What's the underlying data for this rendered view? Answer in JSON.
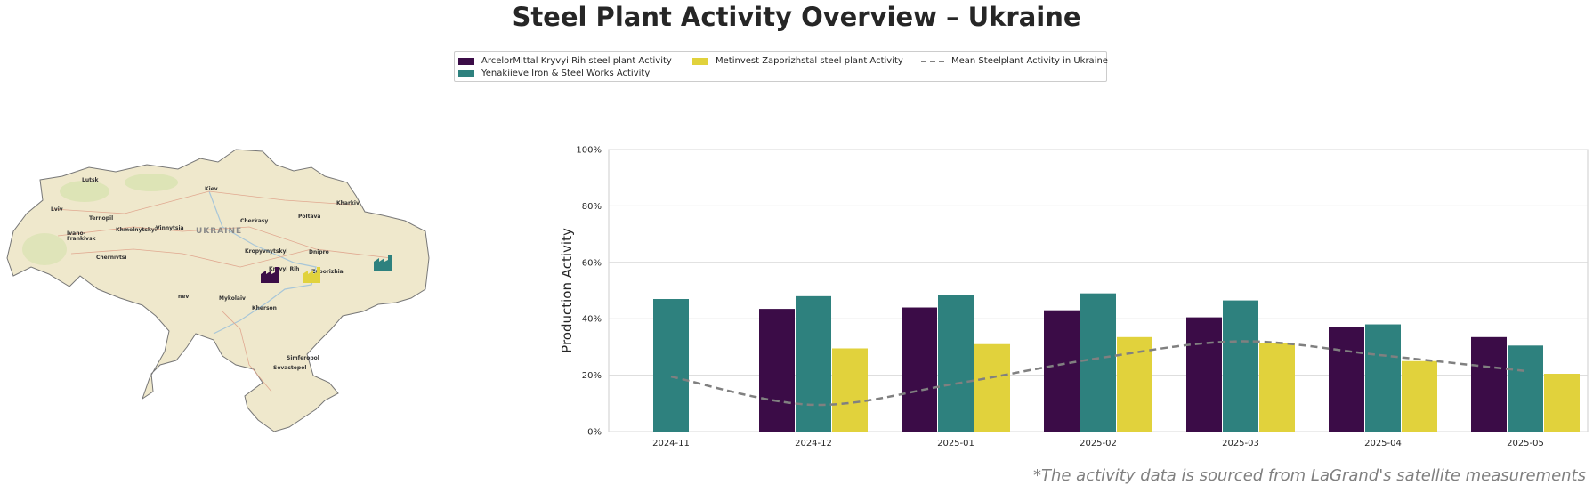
{
  "title": "Steel Plant Activity Overview – Ukraine",
  "footnote": "*The activity data is sourced from LaGrand's satellite measurements",
  "legend": [
    {
      "label": "ArcelorMittal Kryvyi Rih steel plant Activity",
      "color": "#3b0c47"
    },
    {
      "label": "Yenakiieve Iron & Steel Works Activity",
      "color": "#2e817e"
    },
    {
      "label": "Metinvest Zaporizhstal steel plant Activity",
      "color": "#e1d23c"
    },
    {
      "label": "Mean Steelplant Activity in Ukraine",
      "color": "#808080"
    }
  ],
  "map": {
    "country_label": "UKRAINE",
    "cities": [
      "Lutsk",
      "Kiev",
      "Kharkiv",
      "Lviv",
      "Ternopil",
      "Poltava",
      "Cherkasy",
      "Khmelnytskyi",
      "Vinnytsia",
      "Ivano-",
      "Frankivsk",
      "Kropyvnytskyi",
      "Dnipro",
      "Chernivtsi",
      "Kryvyi Rih",
      "Zaporizhia",
      "Mykolaiv",
      "Kherson",
      "nev",
      "Simferopol",
      "Sevastopol"
    ],
    "plant_icons": [
      {
        "name": "ArcelorMittal Kryvyi Rih",
        "color": "#3b0c47"
      },
      {
        "name": "Metinvest Zaporizhstal",
        "color": "#e1d23c"
      },
      {
        "name": "Yenakiieve Iron & Steel Works",
        "color": "#2e817e"
      }
    ]
  },
  "chart_data": {
    "type": "bar",
    "categories": [
      "2024-11",
      "2024-12",
      "2025-01",
      "2025-02",
      "2025-03",
      "2025-04",
      "2025-05"
    ],
    "series": [
      {
        "name": "ArcelorMittal Kryvyi Rih steel plant Activity",
        "color": "#3b0c47",
        "values": [
          null,
          43.5,
          44,
          43,
          40.5,
          37,
          33.5
        ]
      },
      {
        "name": "Yenakiieve Iron & Steel Works Activity",
        "color": "#2e817e",
        "values": [
          47,
          48,
          48.5,
          49,
          46.5,
          38,
          30.5
        ]
      },
      {
        "name": "Metinvest Zaporizhstal steel plant Activity",
        "color": "#e1d23c",
        "values": [
          null,
          29.5,
          31,
          33.5,
          31.5,
          25,
          20.5
        ]
      }
    ],
    "mean_line": {
      "name": "Mean Steelplant Activity in Ukraine",
      "color": "#808080",
      "values": [
        19.5,
        9.5,
        17,
        26,
        32,
        27,
        21.5
      ]
    },
    "ylabel": "Production Activity",
    "ylim": [
      0,
      100
    ],
    "yticks": [
      "0%",
      "20%",
      "40%",
      "60%",
      "80%",
      "100%"
    ],
    "grid": true
  }
}
